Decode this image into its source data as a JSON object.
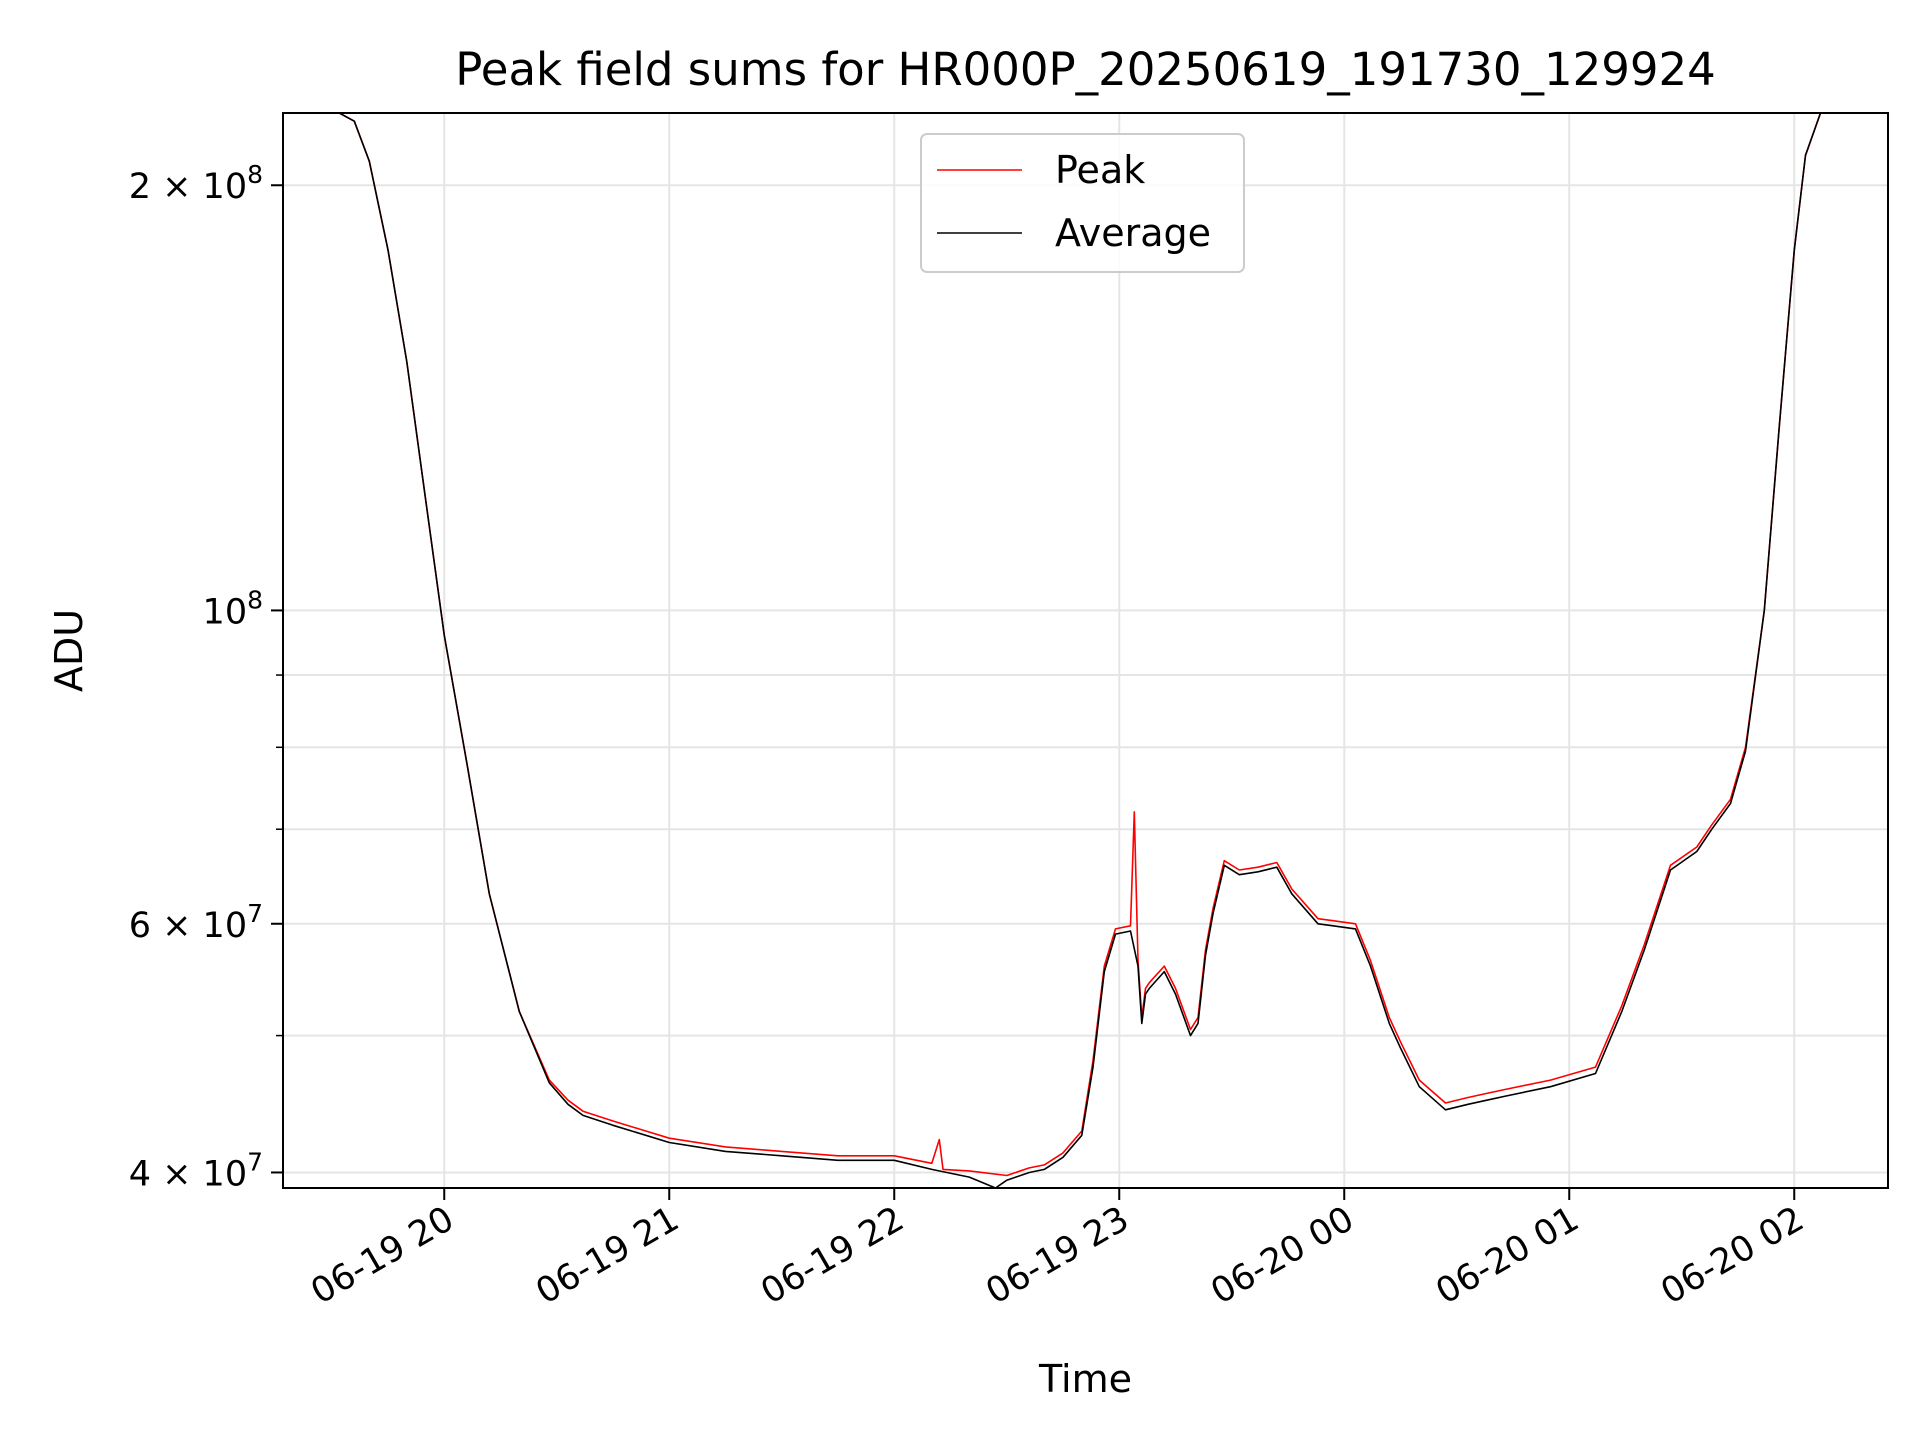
{
  "chart_data": {
    "type": "line",
    "title": "Peak field sums for HR000P_20250619_191730_129924",
    "xlabel": "Time",
    "ylabel": "ADU",
    "x_ticks": [
      "2025-06-19T20:00",
      "2025-06-19T21:00",
      "2025-06-19T22:00",
      "2025-06-19T23:00",
      "2025-06-20T00:00",
      "2025-06-20T01:00",
      "2025-06-20T02:00"
    ],
    "x_tick_labels": [
      "06-19 20",
      "06-19 21",
      "06-19 22",
      "06-19 23",
      "06-20 00",
      "06-20 01",
      "06-20 02"
    ],
    "xlim": [
      "2025-06-19T19:17",
      "2025-06-20T02:25"
    ],
    "y_scale": "log",
    "ylim": [
      39000000,
      225000000
    ],
    "y_major_ticks": [
      40000000,
      60000000,
      100000000,
      200000000
    ],
    "y_tick_labels": [
      "4 × 10^7",
      "6 × 10^7",
      "10^8",
      "2 × 10^8"
    ],
    "y_minor_ticks": [
      50000000,
      70000000,
      80000000,
      90000000
    ],
    "grid": true,
    "legend": "upper center",
    "series": [
      {
        "name": "Peak",
        "color": "#ff0000",
        "x": [
          "2025-06-19T19:17",
          "2025-06-19T19:32",
          "2025-06-19T19:36",
          "2025-06-19T19:40",
          "2025-06-19T19:45",
          "2025-06-19T19:50",
          "2025-06-19T19:55",
          "2025-06-19T20:00",
          "2025-06-19T20:06",
          "2025-06-19T20:12",
          "2025-06-19T20:20",
          "2025-06-19T20:28",
          "2025-06-19T20:33",
          "2025-06-19T20:37",
          "2025-06-19T20:45",
          "2025-06-19T21:00",
          "2025-06-19T21:15",
          "2025-06-19T21:30",
          "2025-06-19T21:45",
          "2025-06-19T22:00",
          "2025-06-19T22:10",
          "2025-06-19T22:12",
          "2025-06-19T22:13",
          "2025-06-19T22:20",
          "2025-06-19T22:30",
          "2025-06-19T22:36",
          "2025-06-19T22:40",
          "2025-06-19T22:45",
          "2025-06-19T22:50",
          "2025-06-19T22:53",
          "2025-06-19T22:56",
          "2025-06-19T22:59",
          "2025-06-19T23:03",
          "2025-06-19T23:04",
          "2025-06-19T23:05",
          "2025-06-19T23:06",
          "2025-06-19T23:07",
          "2025-06-19T23:08",
          "2025-06-19T23:12",
          "2025-06-19T23:15",
          "2025-06-19T23:19",
          "2025-06-19T23:21",
          "2025-06-19T23:23",
          "2025-06-19T23:25",
          "2025-06-19T23:28",
          "2025-06-19T23:32",
          "2025-06-19T23:37",
          "2025-06-19T23:42",
          "2025-06-19T23:46",
          "2025-06-19T23:53",
          "2025-06-19T23:57",
          "2025-06-20T00:03",
          "2025-06-20T00:07",
          "2025-06-20T00:12",
          "2025-06-20T00:15",
          "2025-06-20T00:20",
          "2025-06-20T00:27",
          "2025-06-20T00:33",
          "2025-06-20T00:38",
          "2025-06-20T00:43",
          "2025-06-20T00:55",
          "2025-06-20T01:07",
          "2025-06-20T01:14",
          "2025-06-20T01:20",
          "2025-06-20T01:27",
          "2025-06-20T01:34",
          "2025-06-20T01:38",
          "2025-06-20T01:43",
          "2025-06-20T01:47",
          "2025-06-20T01:52",
          "2025-06-20T01:56",
          "2025-06-20T02:00",
          "2025-06-20T02:03",
          "2025-06-20T02:07",
          "2025-06-20T02:25"
        ],
        "y": [
          225000000,
          225000000,
          222000000,
          208000000,
          180000000,
          150000000,
          120000000,
          96000000,
          78000000,
          63000000,
          52000000,
          46500000,
          45000000,
          44200000,
          43500000,
          42300000,
          41700000,
          41400000,
          41100000,
          41100000,
          40600000,
          42200000,
          40200000,
          40100000,
          39800000,
          40300000,
          40500000,
          41300000,
          42800000,
          48000000,
          56000000,
          59500000,
          59800000,
          72000000,
          56500000,
          51500000,
          54000000,
          54500000,
          56000000,
          54000000,
          50500000,
          51500000,
          57500000,
          61500000,
          66500000,
          65500000,
          65800000,
          66300000,
          63500000,
          60500000,
          60300000,
          60000000,
          56500000,
          51500000,
          49500000,
          46500000,
          44800000,
          45200000,
          45500000,
          45800000,
          46500000,
          47500000,
          52500000,
          58000000,
          66000000,
          68000000,
          70500000,
          73500000,
          80000000,
          100000000,
          135000000,
          180000000,
          210000000,
          225000000,
          225000000
        ]
      },
      {
        "name": "Average",
        "color": "#000000",
        "x": [
          "2025-06-19T19:17",
          "2025-06-19T19:32",
          "2025-06-19T19:36",
          "2025-06-19T19:40",
          "2025-06-19T19:45",
          "2025-06-19T19:50",
          "2025-06-19T19:55",
          "2025-06-19T20:00",
          "2025-06-19T20:06",
          "2025-06-19T20:12",
          "2025-06-19T20:20",
          "2025-06-19T20:28",
          "2025-06-19T20:33",
          "2025-06-19T20:37",
          "2025-06-19T20:45",
          "2025-06-19T21:00",
          "2025-06-19T21:15",
          "2025-06-19T21:30",
          "2025-06-19T21:45",
          "2025-06-19T22:00",
          "2025-06-19T22:10",
          "2025-06-19T22:20",
          "2025-06-19T22:27",
          "2025-06-19T22:30",
          "2025-06-19T22:36",
          "2025-06-19T22:40",
          "2025-06-19T22:45",
          "2025-06-19T22:50",
          "2025-06-19T22:53",
          "2025-06-19T22:56",
          "2025-06-19T22:59",
          "2025-06-19T23:03",
          "2025-06-19T23:05",
          "2025-06-19T23:06",
          "2025-06-19T23:07",
          "2025-06-19T23:08",
          "2025-06-19T23:12",
          "2025-06-19T23:15",
          "2025-06-19T23:19",
          "2025-06-19T23:21",
          "2025-06-19T23:23",
          "2025-06-19T23:25",
          "2025-06-19T23:28",
          "2025-06-19T23:32",
          "2025-06-19T23:37",
          "2025-06-19T23:42",
          "2025-06-19T23:46",
          "2025-06-19T23:53",
          "2025-06-19T23:57",
          "2025-06-20T00:03",
          "2025-06-20T00:07",
          "2025-06-20T00:12",
          "2025-06-20T00:15",
          "2025-06-20T00:20",
          "2025-06-20T00:27",
          "2025-06-20T00:33",
          "2025-06-20T00:38",
          "2025-06-20T00:43",
          "2025-06-20T00:55",
          "2025-06-20T01:07",
          "2025-06-20T01:14",
          "2025-06-20T01:20",
          "2025-06-20T01:27",
          "2025-06-20T01:34",
          "2025-06-20T01:38",
          "2025-06-20T01:43",
          "2025-06-20T01:47",
          "2025-06-20T01:52",
          "2025-06-20T01:56",
          "2025-06-20T02:00",
          "2025-06-20T02:03",
          "2025-06-20T02:07",
          "2025-06-20T02:25"
        ],
        "y": [
          225000000,
          225000000,
          222000000,
          208000000,
          180000000,
          150000000,
          120000000,
          96000000,
          78000000,
          63000000,
          52000000,
          46300000,
          44700000,
          43900000,
          43200000,
          42000000,
          41400000,
          41100000,
          40800000,
          40800000,
          40200000,
          39700000,
          39000000,
          39500000,
          40000000,
          40200000,
          41000000,
          42500000,
          47500000,
          55500000,
          59000000,
          59300000,
          56000000,
          51000000,
          53500000,
          54000000,
          55500000,
          53500000,
          50000000,
          51000000,
          57000000,
          61000000,
          66000000,
          65000000,
          65300000,
          65800000,
          63000000,
          60000000,
          59800000,
          59500000,
          56000000,
          51000000,
          49000000,
          46000000,
          44300000,
          44700000,
          45000000,
          45300000,
          46000000,
          47000000,
          52000000,
          57500000,
          65500000,
          67500000,
          70000000,
          73000000,
          79500000,
          100000000,
          135000000,
          180000000,
          210000000,
          225000000,
          225000000
        ]
      }
    ]
  }
}
